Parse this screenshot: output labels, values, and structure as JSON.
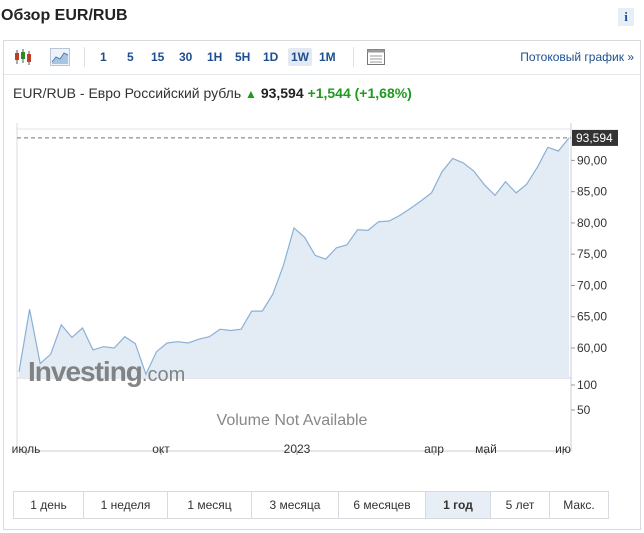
{
  "header": {
    "title": "Обзор EUR/RUB",
    "info_label": "i"
  },
  "toolbar": {
    "timeframes": [
      "1",
      "5",
      "15",
      "30",
      "1H",
      "5H",
      "1D",
      "1W",
      "1M"
    ],
    "active_timeframe": "1W",
    "stream_label": "Потоковый график »"
  },
  "quote": {
    "name": "EUR/RUB - Евро Российский рубль",
    "price": "93,594",
    "change": "+1,544",
    "change_pct": "(+1,68%)",
    "direction_icon": "up-arrow-icon"
  },
  "chart_data": {
    "type": "area",
    "x_tick_labels": [
      "июль",
      "окт",
      "2023",
      "апр",
      "май",
      "ию"
    ],
    "y_ticks": [
      "60,00",
      "65,00",
      "70,00",
      "75,00",
      "80,00",
      "85,00",
      "90,00"
    ],
    "ylim": [
      55.2,
      94.7
    ],
    "last_value_label": "93,594",
    "volume_ticks": [
      "100",
      "50"
    ],
    "volume_note": "Volume Not Available",
    "watermark": "Investing.com",
    "series": [
      {
        "values": [
          56.2,
          66.2,
          57.5,
          59.0,
          63.7,
          61.7,
          63.2,
          59.7,
          60.2,
          60.0,
          61.8,
          60.7,
          55.8,
          59.4,
          60.8,
          61.0,
          60.8,
          61.4,
          61.8,
          63.0,
          62.8,
          63.0,
          65.9,
          65.9,
          68.6,
          73.2,
          79.2,
          77.7,
          74.8,
          74.2,
          76.0,
          76.5,
          78.9,
          78.8,
          80.2,
          80.3,
          81.2,
          82.3,
          83.5,
          84.8,
          88.2,
          90.3,
          89.6,
          88.3,
          86.1,
          84.4,
          86.6,
          84.8,
          86.2,
          88.9,
          92.1,
          91.5,
          93.594
        ]
      }
    ],
    "colors": {
      "line": "#8ab0d6",
      "fill": "#e3ecf5",
      "price_box": "#333333"
    }
  },
  "periods": {
    "items": [
      "1 день",
      "1 неделя",
      "1 месяц",
      "3 месяца",
      "6 месяцев",
      "1 год",
      "5 лет",
      "Макс."
    ],
    "active": "1 год"
  }
}
